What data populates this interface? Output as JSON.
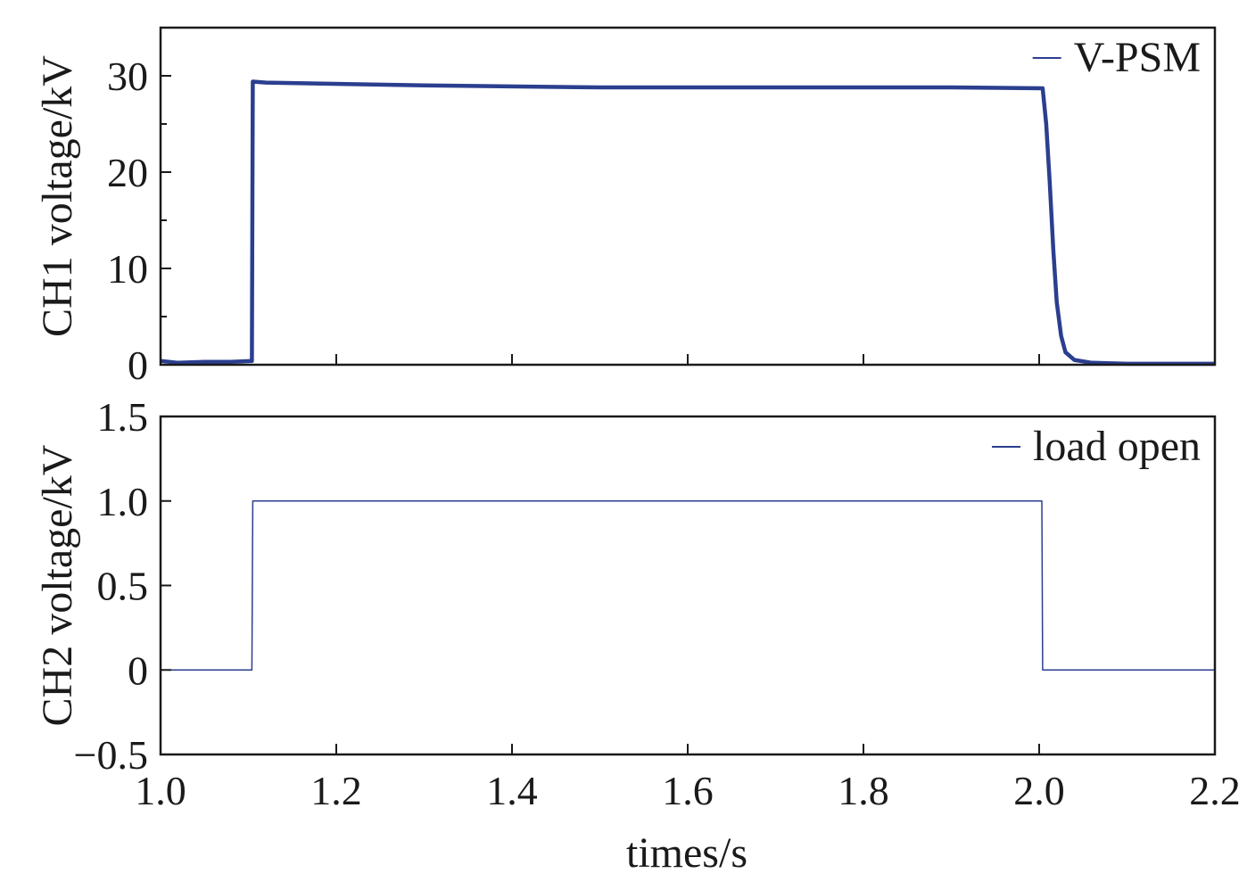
{
  "chart_data": [
    {
      "type": "line",
      "title": "",
      "xlabel": "times/s",
      "ylabel": "CH1 voltage/kV",
      "xlim": [
        1.0,
        2.2
      ],
      "ylim": [
        0,
        35
      ],
      "grid": false,
      "legend_position": "top-right",
      "x_ticks": [
        1.0,
        1.2,
        1.4,
        1.6,
        1.8,
        2.0,
        2.2
      ],
      "x_tick_labels_shown": false,
      "y_ticks": [
        0,
        10,
        20,
        30
      ],
      "y_tick_labels": [
        "0",
        "10",
        "20",
        "30"
      ],
      "y_minor_ticks": [
        5,
        15,
        25
      ],
      "series": [
        {
          "name": "V-PSM",
          "color": "#2b3f8f",
          "x": [
            1.0,
            1.02,
            1.05,
            1.08,
            1.104,
            1.105,
            1.12,
            1.3,
            1.5,
            1.7,
            1.9,
            2.004,
            2.008,
            2.012,
            2.016,
            2.02,
            2.025,
            2.03,
            2.04,
            2.06,
            2.1,
            2.2
          ],
          "y": [
            0.4,
            0.2,
            0.3,
            0.3,
            0.4,
            29.4,
            29.3,
            29.0,
            28.8,
            28.8,
            28.8,
            28.7,
            25.0,
            19.0,
            12.0,
            6.5,
            3.0,
            1.3,
            0.5,
            0.2,
            0.1,
            0.1
          ]
        }
      ]
    },
    {
      "type": "line",
      "title": "",
      "xlabel": "times/s",
      "ylabel": "CH2 voltage/kV",
      "xlim": [
        1.0,
        2.2
      ],
      "ylim": [
        -0.5,
        1.5
      ],
      "grid": false,
      "legend_position": "top-right",
      "x_ticks": [
        1.0,
        1.2,
        1.4,
        1.6,
        1.8,
        2.0,
        2.2
      ],
      "x_tick_labels": [
        "1.0",
        "1.2",
        "1.4",
        "1.6",
        "1.8",
        "2.0",
        "2.2"
      ],
      "y_ticks": [
        -0.5,
        0,
        0.5,
        1.0,
        1.5
      ],
      "y_tick_labels": [
        "−0.5",
        "0",
        "0.5",
        "1.0",
        "1.5"
      ],
      "series": [
        {
          "name": "load open",
          "color": "#2b3f8f",
          "x": [
            1.0,
            1.104,
            1.105,
            2.003,
            2.004,
            2.2
          ],
          "y": [
            0,
            0,
            1.0,
            1.0,
            0,
            0
          ]
        }
      ]
    }
  ]
}
